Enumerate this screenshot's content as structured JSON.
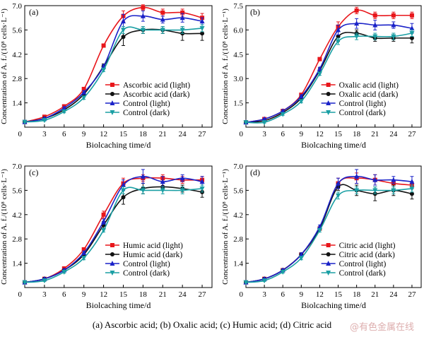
{
  "caption": "(a) Ascorbic acid; (b) Oxalic acid; (c) Humic acid; (d) Citric acid",
  "watermark": "@有色金属在线",
  "chart_data": [
    {
      "type": "line",
      "panel_label": "(a)",
      "xlabel": "Biolcaching time/d",
      "ylabel": "Concentration of A. f./(10⁸ cells·L⁻¹)",
      "x": [
        0,
        3,
        6,
        9,
        12,
        15,
        18,
        21,
        24,
        27
      ],
      "xticks": [
        3,
        6,
        9,
        12,
        15,
        18,
        21,
        24,
        27
      ],
      "yticks": [
        1.4,
        2.8,
        4.2,
        5.6,
        7.0
      ],
      "xlim": [
        0,
        28.5
      ],
      "ylim": [
        0,
        7.0
      ],
      "legend_position": "lower-right",
      "series": [
        {
          "name": "Ascorbic acid (light)",
          "color": "#e8161b",
          "marker": "square",
          "values": [
            0.3,
            0.6,
            1.2,
            2.2,
            4.7,
            6.4,
            6.9,
            6.6,
            6.6,
            6.3
          ],
          "errors": [
            0.03,
            0.05,
            0.07,
            0.1,
            0.1,
            0.3,
            0.15,
            0.2,
            0.2,
            0.25
          ]
        },
        {
          "name": "Ascorbic acid (dark)",
          "color": "#111111",
          "marker": "circle",
          "values": [
            0.3,
            0.5,
            1.0,
            1.9,
            3.5,
            5.2,
            5.6,
            5.6,
            5.4,
            5.4
          ],
          "errors": [
            0.03,
            0.05,
            0.07,
            0.1,
            0.15,
            0.5,
            0.2,
            0.2,
            0.4,
            0.4
          ]
        },
        {
          "name": "Control (light)",
          "color": "#1a22c8",
          "marker": "triangle-up",
          "values": [
            0.3,
            0.5,
            1.1,
            2.0,
            3.5,
            6.1,
            6.4,
            6.2,
            6.3,
            6.1
          ],
          "errors": [
            0.03,
            0.05,
            0.07,
            0.1,
            0.1,
            0.4,
            0.3,
            0.2,
            0.25,
            0.2
          ]
        },
        {
          "name": "Control (dark)",
          "color": "#1a9fa4",
          "marker": "triangle-down",
          "values": [
            0.3,
            0.4,
            0.9,
            1.7,
            3.3,
            5.6,
            5.6,
            5.6,
            5.6,
            5.7
          ],
          "errors": [
            0.03,
            0.05,
            0.07,
            0.1,
            0.1,
            0.2,
            0.2,
            0.2,
            0.2,
            0.2
          ]
        }
      ]
    },
    {
      "type": "line",
      "panel_label": "(b)",
      "xlabel": "Biolcaching time/d",
      "ylabel": "Concentration of A. f./(10⁸ cells·L⁻¹)",
      "x": [
        0,
        3,
        6,
        9,
        12,
        15,
        18,
        21,
        24,
        27
      ],
      "xticks": [
        3,
        6,
        9,
        12,
        15,
        18,
        21,
        24,
        27
      ],
      "yticks": [
        1.5,
        3.0,
        4.5,
        6.0,
        7.5
      ],
      "xlim": [
        0,
        28.5
      ],
      "ylim": [
        0,
        7.5
      ],
      "legend_position": "lower-right",
      "series": [
        {
          "name": "Oxalic acid (light)",
          "color": "#e8161b",
          "marker": "square",
          "values": [
            0.3,
            0.5,
            1.0,
            2.0,
            4.2,
            6.2,
            7.2,
            6.9,
            6.9,
            6.9
          ],
          "errors": [
            0.03,
            0.05,
            0.07,
            0.1,
            0.1,
            0.3,
            0.2,
            0.2,
            0.2,
            0.2
          ]
        },
        {
          "name": "Oxalic acid (dark)",
          "color": "#111111",
          "marker": "circle",
          "values": [
            0.3,
            0.4,
            0.9,
            1.8,
            3.5,
            5.6,
            5.8,
            5.5,
            5.5,
            5.5
          ],
          "errors": [
            0.03,
            0.05,
            0.07,
            0.1,
            0.15,
            0.3,
            0.2,
            0.2,
            0.2,
            0.3
          ]
        },
        {
          "name": "Control (light)",
          "color": "#1a22c8",
          "marker": "triangle-up",
          "values": [
            0.3,
            0.5,
            1.0,
            1.9,
            3.6,
            6.0,
            6.4,
            6.3,
            6.3,
            6.1
          ],
          "errors": [
            0.03,
            0.05,
            0.07,
            0.1,
            0.1,
            0.3,
            0.3,
            0.3,
            0.2,
            0.3
          ]
        },
        {
          "name": "Control (dark)",
          "color": "#1a9fa4",
          "marker": "triangle-down",
          "values": [
            0.3,
            0.3,
            0.8,
            1.6,
            3.3,
            5.3,
            5.6,
            5.6,
            5.6,
            5.8
          ],
          "errors": [
            0.03,
            0.05,
            0.07,
            0.1,
            0.1,
            0.2,
            0.2,
            0.2,
            0.2,
            0.2
          ]
        }
      ]
    },
    {
      "type": "line",
      "panel_label": "(c)",
      "xlabel": "Biolcaching time/d",
      "ylabel": "Concentration of A. f./(10⁸ cells·L⁻¹)",
      "x": [
        0,
        3,
        6,
        9,
        12,
        15,
        18,
        21,
        24,
        27
      ],
      "xticks": [
        3,
        6,
        9,
        12,
        15,
        18,
        21,
        24,
        27
      ],
      "yticks": [
        1.4,
        2.8,
        4.2,
        5.6,
        7.0
      ],
      "xlim": [
        0,
        28.5
      ],
      "ylim": [
        0,
        7.0
      ],
      "legend_position": "lower-right",
      "series": [
        {
          "name": "Humic acid (light)",
          "color": "#e8161b",
          "marker": "square",
          "values": [
            0.3,
            0.5,
            1.1,
            2.2,
            4.2,
            6.0,
            6.3,
            6.3,
            6.2,
            6.2
          ],
          "errors": [
            0.03,
            0.05,
            0.07,
            0.1,
            0.2,
            0.3,
            0.2,
            0.2,
            0.2,
            0.2
          ]
        },
        {
          "name": "Humic acid (dark)",
          "color": "#111111",
          "marker": "circle",
          "values": [
            0.3,
            0.5,
            1.0,
            1.9,
            3.6,
            5.2,
            5.7,
            5.8,
            5.7,
            5.5
          ],
          "errors": [
            0.03,
            0.05,
            0.07,
            0.1,
            0.2,
            0.4,
            0.3,
            0.2,
            0.2,
            0.3
          ]
        },
        {
          "name": "Control (light)",
          "color": "#1a22c8",
          "marker": "triangle-up",
          "values": [
            0.3,
            0.5,
            1.0,
            2.0,
            3.8,
            5.9,
            6.4,
            6.1,
            6.3,
            6.1
          ],
          "errors": [
            0.03,
            0.05,
            0.07,
            0.1,
            0.15,
            0.3,
            0.4,
            0.3,
            0.2,
            0.3
          ]
        },
        {
          "name": "Control (dark)",
          "color": "#1a9fa4",
          "marker": "triangle-down",
          "values": [
            0.3,
            0.4,
            0.9,
            1.7,
            3.3,
            5.6,
            5.6,
            5.6,
            5.6,
            5.7
          ],
          "errors": [
            0.03,
            0.05,
            0.07,
            0.1,
            0.1,
            0.2,
            0.2,
            0.2,
            0.2,
            0.2
          ]
        }
      ]
    },
    {
      "type": "line",
      "panel_label": "(d)",
      "xlabel": "Biolcaching time/d",
      "ylabel": "Concentration of A. f./(10⁸ cells·L⁻¹)",
      "x": [
        0,
        3,
        6,
        9,
        12,
        15,
        18,
        21,
        24,
        27
      ],
      "xticks": [
        3,
        6,
        9,
        12,
        15,
        18,
        21,
        24,
        27
      ],
      "yticks": [
        1.4,
        2.8,
        4.2,
        5.6,
        7.0
      ],
      "xlim": [
        0,
        28.5
      ],
      "ylim": [
        0,
        7.0
      ],
      "legend_position": "lower-right",
      "series": [
        {
          "name": "Citric acid (light)",
          "color": "#e8161b",
          "marker": "square",
          "values": [
            0.3,
            0.5,
            1.0,
            1.9,
            3.4,
            6.0,
            6.3,
            6.2,
            6.0,
            5.9
          ],
          "errors": [
            0.03,
            0.05,
            0.07,
            0.1,
            0.1,
            0.3,
            0.3,
            0.3,
            0.2,
            0.2
          ]
        },
        {
          "name": "Citric acid (dark)",
          "color": "#111111",
          "marker": "circle",
          "values": [
            0.3,
            0.5,
            1.0,
            1.9,
            3.4,
            5.8,
            5.6,
            5.4,
            5.6,
            5.4
          ],
          "errors": [
            0.03,
            0.05,
            0.07,
            0.1,
            0.1,
            0.2,
            0.3,
            0.4,
            0.3,
            0.3
          ]
        },
        {
          "name": "Control (light)",
          "color": "#1a22c8",
          "marker": "triangle-up",
          "values": [
            0.3,
            0.5,
            1.0,
            1.9,
            3.5,
            6.0,
            6.4,
            6.2,
            6.2,
            6.1
          ],
          "errors": [
            0.03,
            0.05,
            0.07,
            0.1,
            0.1,
            0.3,
            0.4,
            0.3,
            0.2,
            0.3
          ]
        },
        {
          "name": "Control (dark)",
          "color": "#1a9fa4",
          "marker": "triangle-down",
          "values": [
            0.3,
            0.4,
            0.9,
            1.7,
            3.3,
            5.3,
            5.6,
            5.6,
            5.6,
            5.7
          ],
          "errors": [
            0.03,
            0.05,
            0.07,
            0.1,
            0.1,
            0.2,
            0.2,
            0.2,
            0.2,
            0.2
          ]
        }
      ]
    }
  ]
}
